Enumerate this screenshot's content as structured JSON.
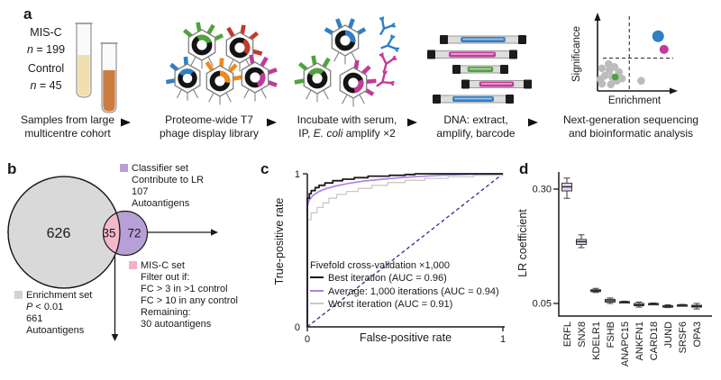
{
  "palette": {
    "green": "#4ea43b",
    "red": "#c13a2a",
    "blue": "#2e7fc6",
    "orange": "#ee8a1c",
    "magenta": "#c23a98",
    "venn_gray": "#d9d9d9",
    "venn_purple": "#b7a0d8",
    "venn_pink": "#f3b9ca",
    "roc_purple": "#ab82e4",
    "roc_gray": "#c9c9c9",
    "roc_black": "#1a1a1a",
    "diagonal_navy": "#2b2f8e",
    "box_fill": "#e2d4ee",
    "dna": [
      "#2e7fc6",
      "#c23a98",
      "#4ea43b",
      "#c23a98",
      "#2e7fc6"
    ],
    "tube1_liquid": "#f1e0ae",
    "tube2_liquid": "#cd7c3f"
  },
  "panel_a": {
    "label": "a",
    "cohort": {
      "group1": "MIS-C",
      "n1_it": "n",
      "n1_rest": " = 199",
      "group2": "Control",
      "n2_it": "n",
      "n2_rest": " = 45"
    },
    "captions": {
      "s1l1": "Samples from large",
      "s1l2": "multicentre cohort",
      "s2l1": "Proteome-wide T7",
      "s2l2": "phage display library",
      "s3l1": "Incubate with serum,",
      "s3l2_pre": "IP, ",
      "s3l2_it": "E. coli",
      "s3l2_post": " amplify ×2",
      "s4l1": "DNA: extract,",
      "s4l2": "amplify, barcode",
      "s5l1": "Next-generation sequencing",
      "s5l2": "and bioinformatic analysis"
    }
  },
  "panel_b": {
    "label": "b",
    "counts": {
      "enrichment_only": "626",
      "overlap": "35",
      "classifier_only": "72"
    },
    "classifier_legend": {
      "title": "Classifier set",
      "line2": "Contribute to LR",
      "line3": "107",
      "line4": "Autoantigens"
    },
    "misc_legend": {
      "title": "MIS-C set",
      "line2": "Filter out if:",
      "line3": "FC > 3 in >1 control",
      "line4": "FC > 10 in any control",
      "line5": "Remaining:",
      "line6": "30 autoantigens"
    },
    "enrichment_legend": {
      "title": "Enrichment set",
      "p_it": "P",
      "p_rest": " < 0.01",
      "line3": "661",
      "line4": "Autoantigens"
    }
  },
  "panel_c": {
    "label": "c"
  },
  "panel_d": {
    "label": "d"
  },
  "chart_data": [
    {
      "type": "line",
      "id": "roc",
      "title": "Fivefold cross-validation ×1,000",
      "xlabel": "False-positive rate",
      "ylabel": "True-positive rate",
      "xlim": [
        0,
        1
      ],
      "ylim": [
        0,
        1
      ],
      "xticks": [
        "0",
        "1"
      ],
      "yticks": [
        "0",
        "1"
      ],
      "diagonal": {
        "style": "dashed",
        "color": "#2b2f8e",
        "from": [
          0,
          0
        ],
        "to": [
          1,
          1
        ]
      },
      "series": [
        {
          "name": "Best iteration (AUC = 0.96)",
          "auc": 0.96,
          "color": "#1a1a1a",
          "style": "step",
          "points": [
            [
              0,
              0
            ],
            [
              0,
              0.84
            ],
            [
              0.01,
              0.87
            ],
            [
              0.02,
              0.89
            ],
            [
              0.04,
              0.91
            ],
            [
              0.06,
              0.925
            ],
            [
              0.09,
              0.94
            ],
            [
              0.13,
              0.955
            ],
            [
              0.18,
              0.965
            ],
            [
              0.24,
              0.975
            ],
            [
              0.31,
              0.985
            ],
            [
              0.42,
              0.99
            ],
            [
              0.5,
              0.995
            ],
            [
              0.55,
              1
            ],
            [
              1,
              1
            ]
          ]
        },
        {
          "name": "Average: 1,000 iterations (AUC = 0.94)",
          "auc": 0.94,
          "color": "#ab82e4",
          "style": "smooth",
          "points": [
            [
              0,
              0
            ],
            [
              0,
              0.79
            ],
            [
              0.01,
              0.83
            ],
            [
              0.03,
              0.86
            ],
            [
              0.06,
              0.885
            ],
            [
              0.1,
              0.905
            ],
            [
              0.15,
              0.922
            ],
            [
              0.21,
              0.937
            ],
            [
              0.28,
              0.951
            ],
            [
              0.36,
              0.962
            ],
            [
              0.45,
              0.972
            ],
            [
              0.55,
              0.981
            ],
            [
              0.68,
              0.99
            ],
            [
              0.85,
              0.997
            ],
            [
              1,
              1
            ]
          ]
        },
        {
          "name": "Worst iteration (AUC = 0.91)",
          "auc": 0.91,
          "color": "#c9c9c9",
          "style": "step",
          "points": [
            [
              0,
              0
            ],
            [
              0,
              0.7
            ],
            [
              0.02,
              0.745
            ],
            [
              0.05,
              0.78
            ],
            [
              0.08,
              0.81
            ],
            [
              0.11,
              0.84
            ],
            [
              0.15,
              0.865
            ],
            [
              0.2,
              0.885
            ],
            [
              0.26,
              0.905
            ],
            [
              0.33,
              0.925
            ],
            [
              0.41,
              0.943
            ],
            [
              0.5,
              0.957
            ],
            [
              0.6,
              0.97
            ],
            [
              0.72,
              0.98
            ],
            [
              0.85,
              0.99
            ],
            [
              1,
              1
            ]
          ]
        }
      ]
    },
    {
      "type": "box",
      "id": "lr-coefficients",
      "ylabel": "LR coefficient",
      "ylim": [
        0.0,
        0.35
      ],
      "yticks": [
        {
          "v": 0.3,
          "label": "0.30"
        },
        {
          "v": 0.05,
          "label": "0.05"
        }
      ],
      "categories": [
        "ERFL",
        "SNX8",
        "KDELR1",
        "FSHB",
        "ANAPC15",
        "ANKFN1",
        "CARD18",
        "JUND",
        "SRSF6",
        "OPA3"
      ],
      "boxes": [
        {
          "lo": 0.28,
          "q1": 0.296,
          "med": 0.305,
          "q3": 0.313,
          "hi": 0.324
        },
        {
          "lo": 0.172,
          "q1": 0.179,
          "med": 0.185,
          "q3": 0.19,
          "hi": 0.2
        },
        {
          "lo": 0.074,
          "q1": 0.076,
          "med": 0.078,
          "q3": 0.08,
          "hi": 0.083
        },
        {
          "lo": 0.05,
          "q1": 0.053,
          "med": 0.056,
          "q3": 0.059,
          "hi": 0.062
        },
        {
          "lo": 0.051,
          "q1": 0.052,
          "med": 0.053,
          "q3": 0.054,
          "hi": 0.055
        },
        {
          "lo": 0.042,
          "q1": 0.045,
          "med": 0.047,
          "q3": 0.05,
          "hi": 0.053
        },
        {
          "lo": 0.048,
          "q1": 0.049,
          "med": 0.049,
          "q3": 0.05,
          "hi": 0.051
        },
        {
          "lo": 0.041,
          "q1": 0.043,
          "med": 0.044,
          "q3": 0.045,
          "hi": 0.047
        },
        {
          "lo": 0.044,
          "q1": 0.045,
          "med": 0.046,
          "q3": 0.047,
          "hi": 0.048
        },
        {
          "lo": 0.038,
          "q1": 0.042,
          "med": 0.044,
          "q3": 0.046,
          "hi": 0.05
        }
      ]
    },
    {
      "type": "scatter",
      "id": "enrichment-volcano",
      "xlabel": "Enrichment",
      "ylabel": "Significance",
      "thresholds": {
        "x": 0.43,
        "y": 0.45
      },
      "points": {
        "gray": [
          [
            0.06,
            0.31
          ],
          [
            0.15,
            0.37
          ],
          [
            0.23,
            0.33
          ],
          [
            0.1,
            0.21
          ],
          [
            0.2,
            0.19
          ],
          [
            0.29,
            0.26
          ],
          [
            0.04,
            0.16
          ],
          [
            0.26,
            0.14
          ],
          [
            0.16,
            0.28
          ],
          [
            0.06,
            0.1
          ],
          [
            0.18,
            0.09
          ],
          [
            0.33,
            0.17
          ],
          [
            0.59,
            0.14
          ]
        ],
        "green": [
          [
            0.24,
            0.19
          ]
        ],
        "blue": [
          [
            0.82,
            0.75
          ]
        ],
        "magenta": [
          [
            0.9,
            0.57
          ]
        ]
      }
    }
  ]
}
